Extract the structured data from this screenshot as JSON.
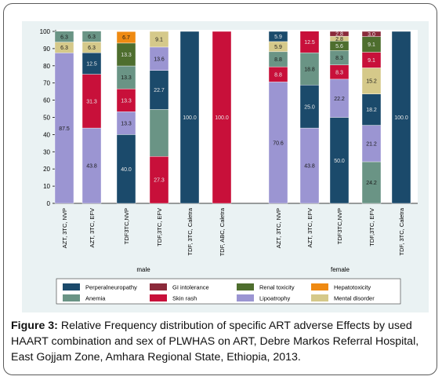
{
  "caption": {
    "label": "Figure 3:",
    "text": " Relative Frequency distribution of specific ART adverse Effects by used HAART combination and sex of PLWHAS on ART, Debre Markos Referral Hospital, East   Gojjam Zone, Amhara Regional State, Ethiopia, 2013."
  },
  "chart_data": {
    "type": "bar",
    "stacked": true,
    "ylim": [
      0,
      100
    ],
    "yticks": [
      0,
      10,
      20,
      30,
      40,
      50,
      60,
      70,
      80,
      90,
      100
    ],
    "groups": [
      {
        "name": "male",
        "bars": [
          {
            "label": "AZT, 3TC, NVP",
            "segments": [
              {
                "series": "Lipoatrophy",
                "value": 87.5,
                "text": "87.5"
              },
              {
                "series": "Mental disorder",
                "value": 6.3,
                "text": "6.3"
              },
              {
                "series": "Anemia",
                "value": 6.3,
                "text": "6.3"
              }
            ]
          },
          {
            "label": "AZT, 3TC, EFV",
            "segments": [
              {
                "series": "Lipoatrophy",
                "value": 43.8,
                "text": "43.8"
              },
              {
                "series": "Skin rash",
                "value": 31.3,
                "text": "31.3"
              },
              {
                "series": "Perperalneuropathy",
                "value": 12.5,
                "text": "12.5"
              },
              {
                "series": "Mental disorder",
                "value": 6.3,
                "text": "6.3"
              },
              {
                "series": "Anemia",
                "value": 6.3,
                "text": "6.3"
              }
            ]
          },
          {
            "label": "TDF3TC,NVP",
            "segments": [
              {
                "series": "Perperalneuropathy",
                "value": 40.0,
                "text": "40.0"
              },
              {
                "series": "Lipoatrophy",
                "value": 13.3,
                "text": "13.3"
              },
              {
                "series": "Skin rash",
                "value": 13.3,
                "text": "13.3"
              },
              {
                "series": "Anemia",
                "value": 13.3,
                "text": "13.3"
              },
              {
                "series": "Renal toxicity",
                "value": 13.3,
                "text": "13.3"
              },
              {
                "series": "Hepatotoxicity",
                "value": 6.7,
                "text": "6.7"
              }
            ]
          },
          {
            "label": "TDF,3TC, EFV",
            "segments": [
              {
                "series": "Skin rash",
                "value": 27.3,
                "text": "27.3"
              },
              {
                "series": "Anemia",
                "value": 27.3,
                "text": ""
              },
              {
                "series": "Perperalneuropathy",
                "value": 22.7,
                "text": "22.7"
              },
              {
                "series": "Lipoatrophy",
                "value": 13.6,
                "text": "13.6"
              },
              {
                "series": "Mental disorder",
                "value": 9.1,
                "text": "9.1"
              }
            ]
          },
          {
            "label": "TDF, 3TC, Caletra",
            "segments": [
              {
                "series": "Perperalneuropathy",
                "value": 100.0,
                "text": "100.0"
              }
            ]
          },
          {
            "label": "TDF, ABC, Caletra",
            "segments": [
              {
                "series": "Skin rash",
                "value": 100.0,
                "text": "100.0"
              }
            ]
          }
        ]
      },
      {
        "name": "female",
        "bars": [
          {
            "label": "AZT, 3TC, NVP",
            "segments": [
              {
                "series": "Lipoatrophy",
                "value": 70.6,
                "text": "70.6"
              },
              {
                "series": "Skin rash",
                "value": 8.8,
                "text": "8.8"
              },
              {
                "series": "Anemia",
                "value": 8.8,
                "text": "8.8"
              },
              {
                "series": "Mental disorder",
                "value": 5.9,
                "text": "5.9"
              },
              {
                "series": "Perperalneuropathy",
                "value": 5.9,
                "text": "5.9"
              }
            ]
          },
          {
            "label": "AZT, 3TC, EFV",
            "segments": [
              {
                "series": "Lipoatrophy",
                "value": 43.8,
                "text": "43.8"
              },
              {
                "series": "Perperalneuropathy",
                "value": 25.0,
                "text": "25.0"
              },
              {
                "series": "Anemia",
                "value": 18.8,
                "text": "18.8"
              },
              {
                "series": "Skin rash",
                "value": 12.5,
                "text": "12.5"
              }
            ]
          },
          {
            "label": "TDF3TC,NVP",
            "segments": [
              {
                "series": "Perperalneuropathy",
                "value": 50.0,
                "text": "50.0"
              },
              {
                "series": "Lipoatrophy",
                "value": 22.2,
                "text": "22.2"
              },
              {
                "series": "Skin rash",
                "value": 8.3,
                "text": "8.3"
              },
              {
                "series": "Anemia",
                "value": 8.3,
                "text": "8.3"
              },
              {
                "series": "Renal toxicity",
                "value": 5.6,
                "text": "5.6"
              },
              {
                "series": "Mental disorder",
                "value": 2.8,
                "text": "2.8"
              },
              {
                "series": "GI intolerance",
                "value": 2.8,
                "text": "2.8"
              }
            ]
          },
          {
            "label": "TDF,3TC, EFV",
            "segments": [
              {
                "series": "Anemia",
                "value": 24.2,
                "text": "24.2"
              },
              {
                "series": "Lipoatrophy",
                "value": 21.2,
                "text": "21.2"
              },
              {
                "series": "Perperalneuropathy",
                "value": 18.2,
                "text": "18.2"
              },
              {
                "series": "Mental disorder",
                "value": 15.2,
                "text": "15.2"
              },
              {
                "series": "Skin rash",
                "value": 9.1,
                "text": "9.1"
              },
              {
                "series": "Renal toxicity",
                "value": 9.1,
                "text": "9.1"
              },
              {
                "series": "GI intolerance",
                "value": 3.0,
                "text": "3.0"
              }
            ]
          },
          {
            "label": "TDF, 3TC, Caletra",
            "segments": [
              {
                "series": "Perperalneuropathy",
                "value": 100.0,
                "text": "100.0"
              }
            ]
          }
        ]
      }
    ],
    "legend": {
      "placement": "bottom",
      "items": [
        {
          "name": "Perperalneuropathy",
          "color": "#1b4a6b"
        },
        {
          "name": "GI intolerance",
          "color": "#8b2a3a"
        },
        {
          "name": "Renal toxicity",
          "color": "#4e6e2e"
        },
        {
          "name": "Hepatotoxicity",
          "color": "#ef8a12"
        },
        {
          "name": "Anemia",
          "color": "#6a9485"
        },
        {
          "name": "Skin rash",
          "color": "#c8103a"
        },
        {
          "name": "Lipoatrophy",
          "color": "#9b95d2"
        },
        {
          "name": "Mental disorder",
          "color": "#d5c98a"
        }
      ]
    }
  }
}
